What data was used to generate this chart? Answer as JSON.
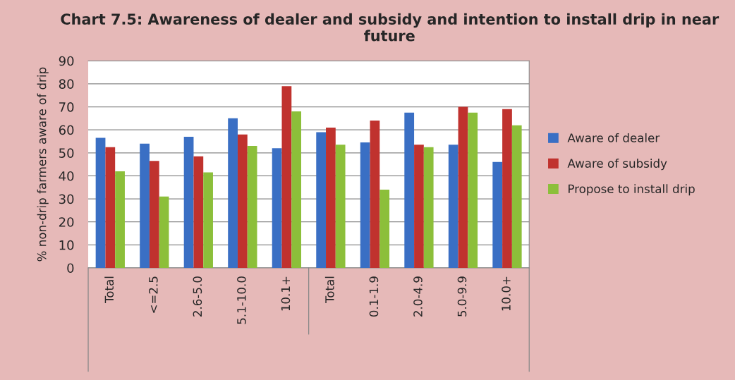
{
  "chart_data": {
    "type": "bar",
    "title": "Chart 7.5: Awareness of dealer and subsidy and intention to install drip in near future",
    "ylabel": "% non-drip farmers aware of drip",
    "categories": [
      "Total",
      "<=2.5",
      "2.6-5.0",
      "5.1-10.0",
      "10.1+",
      "Total",
      "0.1-1.9",
      "2.0-4.9",
      "5.0-9.9",
      "10.0+"
    ],
    "series": [
      {
        "name": "Aware of dealer",
        "color": "#3a6fc4",
        "values": [
          56.5,
          54,
          57,
          65,
          52,
          59,
          54.5,
          67.5,
          53.5,
          46
        ]
      },
      {
        "name": "Aware of subsidy",
        "color": "#c0322e",
        "values": [
          52.5,
          46.5,
          48.5,
          58,
          79,
          61,
          64,
          53.5,
          70,
          69
        ]
      },
      {
        "name": "Propose to install drip",
        "color": "#8cbf3a",
        "values": [
          42,
          31,
          41.5,
          53,
          68,
          53.5,
          34,
          52.5,
          67.5,
          62
        ]
      }
    ],
    "ylim": [
      0,
      90
    ],
    "yticks": [
      0,
      10,
      20,
      30,
      40,
      50,
      60,
      70,
      80,
      90
    ],
    "grid": "y",
    "legend": "right"
  }
}
